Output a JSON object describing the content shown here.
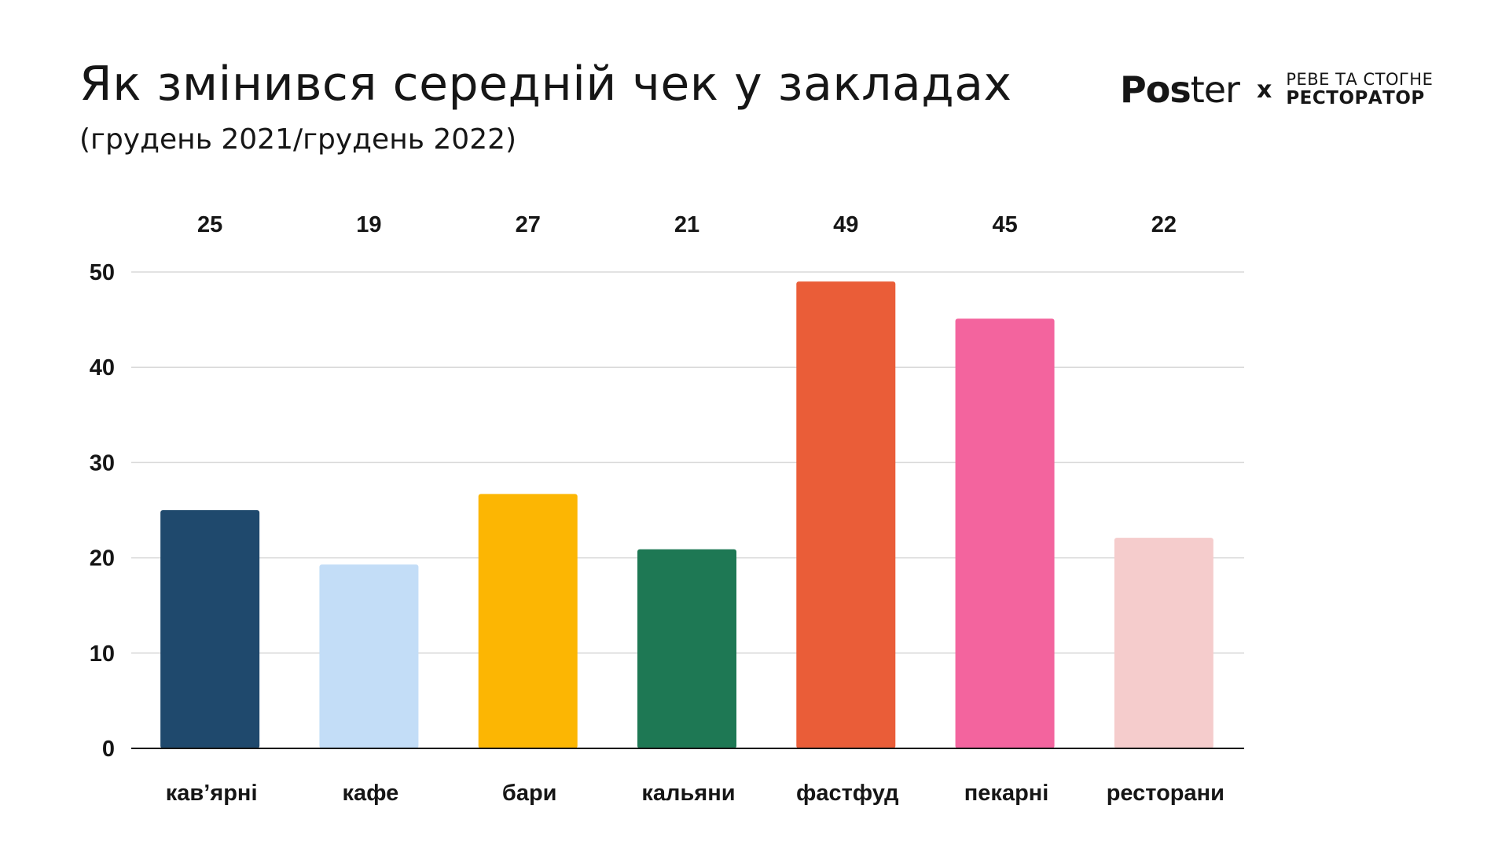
{
  "header": {
    "title": "Як змінився середній чек у закладах",
    "subtitle": "(грудень 2021/грудень 2022)"
  },
  "brand": {
    "poster_bold": "Pos",
    "poster_light": "ter",
    "separator": "x",
    "partner_line1": "РЕВЕ ТА СТОГНЕ",
    "partner_line2": "РЕСТОРАТОР"
  },
  "chart_data": {
    "type": "bar",
    "categories": [
      "кав’ярні",
      "кафе",
      "бари",
      "кальяни",
      "фастфуд",
      "пекарні",
      "ресторани"
    ],
    "values": [
      25,
      19.3,
      26.7,
      20.9,
      49,
      45.1,
      22.1
    ],
    "data_labels": [
      "25",
      "19",
      "27",
      "21",
      "49",
      "45",
      "22"
    ],
    "colors": [
      "#1f496d",
      "#c3ddf7",
      "#fcb603",
      "#1e7854",
      "#ea5d38",
      "#f3649e",
      "#f5cccc"
    ],
    "ylim": [
      0,
      50
    ],
    "yticks": [
      "0",
      "10",
      "20",
      "30",
      "40",
      "50"
    ],
    "grid": true,
    "title": "",
    "xlabel": "",
    "ylabel": ""
  }
}
